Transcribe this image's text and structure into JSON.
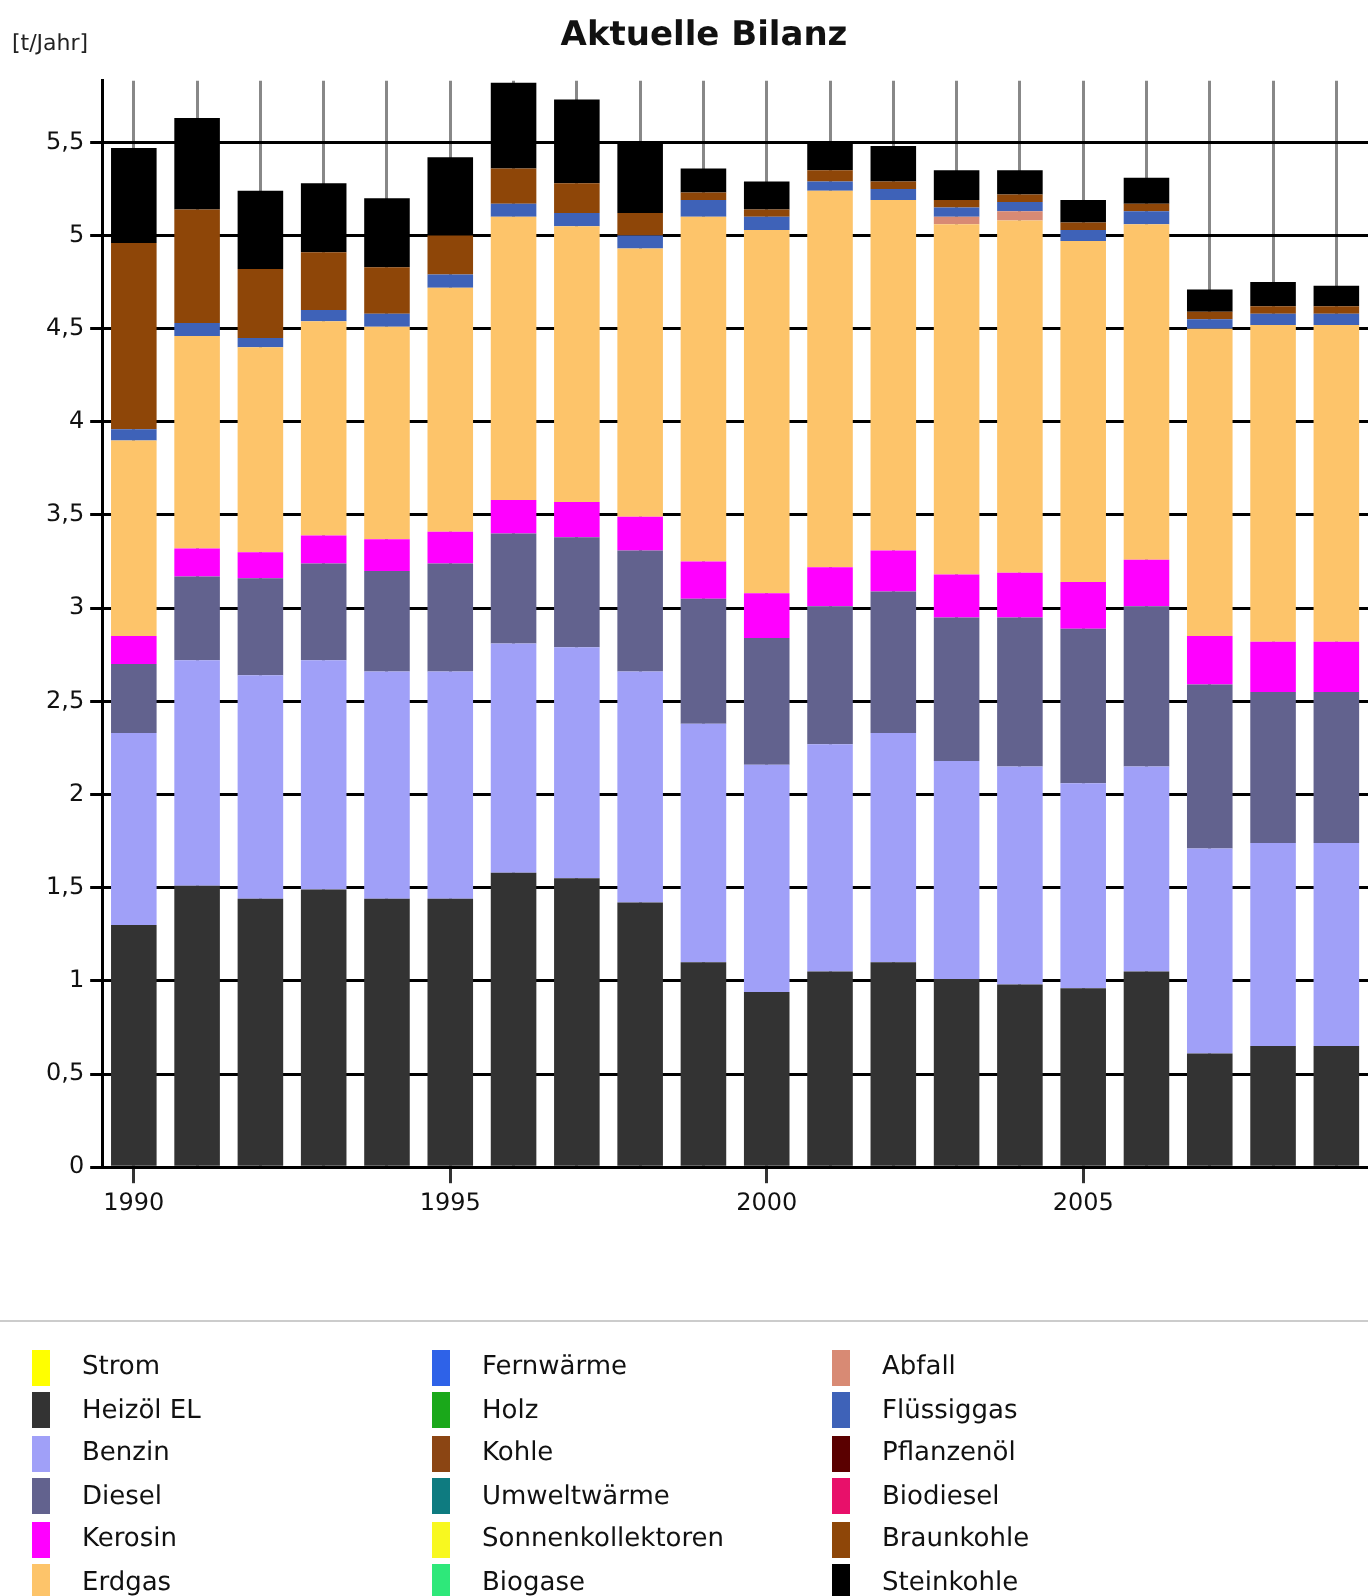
{
  "chart_data": {
    "type": "bar",
    "title": "Aktuelle Bilanz",
    "ylabel": "[t/Jahr]",
    "stacked": true,
    "grid": true,
    "legend": "bottom",
    "categories": [
      "1990",
      null,
      null,
      null,
      null,
      "1995",
      null,
      null,
      null,
      null,
      "2000",
      null,
      null,
      null,
      null,
      "2005",
      null,
      null,
      null,
      null
    ],
    "ylim": [
      0,
      5.83
    ],
    "yticks": [
      0,
      {
        "value": 0.5,
        "label": "0,5"
      },
      1,
      {
        "value": 1.5,
        "label": "1,5"
      },
      2,
      {
        "value": 2.5,
        "label": "2,5"
      },
      3,
      {
        "value": 3.5,
        "label": "3,5"
      },
      4,
      {
        "value": 4.5,
        "label": "4,5"
      },
      5,
      {
        "value": 5.5,
        "label": "5,5"
      }
    ],
    "series": [
      {
        "name": "Strom",
        "color": "#ffff00",
        "values": [
          0,
          0,
          0,
          0,
          0,
          0,
          0,
          0,
          0,
          0,
          0,
          0,
          0,
          0,
          0,
          0,
          0,
          0,
          0,
          0
        ]
      },
      {
        "name": "Heizöl EL",
        "color": "#333333",
        "values": [
          1.3,
          1.51,
          1.44,
          1.49,
          1.44,
          1.44,
          1.58,
          1.55,
          1.42,
          1.1,
          0.94,
          1.05,
          1.1,
          1.01,
          0.98,
          0.96,
          1.05,
          0.61,
          0.65,
          0.65
        ]
      },
      {
        "name": "Benzin",
        "color": "#a0a0f8",
        "values": [
          1.03,
          1.21,
          1.2,
          1.23,
          1.22,
          1.22,
          1.23,
          1.24,
          1.24,
          1.28,
          1.22,
          1.22,
          1.23,
          1.17,
          1.17,
          1.1,
          1.1,
          1.1,
          1.09,
          1.09
        ]
      },
      {
        "name": "Diesel",
        "color": "#62628e",
        "values": [
          0.37,
          0.45,
          0.52,
          0.52,
          0.54,
          0.58,
          0.59,
          0.59,
          0.65,
          0.67,
          0.68,
          0.74,
          0.76,
          0.77,
          0.8,
          0.83,
          0.86,
          0.88,
          0.81,
          0.81
        ]
      },
      {
        "name": "Kerosin",
        "color": "#ff00ff",
        "values": [
          0.15,
          0.15,
          0.14,
          0.15,
          0.17,
          0.17,
          0.18,
          0.19,
          0.18,
          0.2,
          0.24,
          0.21,
          0.22,
          0.23,
          0.24,
          0.25,
          0.25,
          0.26,
          0.27,
          0.27
        ]
      },
      {
        "name": "Erdgas",
        "color": "#fdc46a",
        "values": [
          1.05,
          1.14,
          1.1,
          1.15,
          1.14,
          1.31,
          1.52,
          1.48,
          1.44,
          1.85,
          1.95,
          2.02,
          1.88,
          1.88,
          1.89,
          1.83,
          1.8,
          1.65,
          1.7,
          1.7
        ]
      },
      {
        "name": "Fernwärme",
        "color": "#2e62e8",
        "values": [
          0,
          0,
          0,
          0,
          0,
          0,
          0,
          0,
          0,
          0,
          0,
          0,
          0,
          0,
          0,
          0,
          0,
          0,
          0,
          0
        ]
      },
      {
        "name": "Holz",
        "color": "#1aa81a",
        "values": [
          0,
          0,
          0,
          0,
          0,
          0,
          0,
          0,
          0,
          0,
          0,
          0,
          0,
          0,
          0,
          0,
          0,
          0,
          0,
          0
        ]
      },
      {
        "name": "Kohle",
        "color": "#8b4513",
        "values": [
          0,
          0,
          0,
          0,
          0,
          0,
          0,
          0,
          0,
          0,
          0,
          0,
          0,
          0,
          0,
          0,
          0,
          0,
          0,
          0
        ]
      },
      {
        "name": "Umweltwärme",
        "color": "#0e7b80",
        "values": [
          0,
          0,
          0,
          0,
          0,
          0,
          0,
          0,
          0,
          0,
          0,
          0,
          0,
          0,
          0,
          0,
          0,
          0,
          0,
          0
        ]
      },
      {
        "name": "Sonnenkollektoren",
        "color": "#f8f820",
        "values": [
          0,
          0,
          0,
          0,
          0,
          0,
          0,
          0,
          0,
          0,
          0,
          0,
          0,
          0,
          0,
          0,
          0,
          0,
          0,
          0
        ]
      },
      {
        "name": "Biogase",
        "color": "#2ee87a",
        "values": [
          0,
          0,
          0,
          0,
          0,
          0,
          0,
          0,
          0,
          0,
          0,
          0,
          0,
          0,
          0,
          0,
          0,
          0,
          0,
          0
        ]
      },
      {
        "name": "Abfall",
        "color": "#d88a74",
        "values": [
          0,
          0,
          0,
          0,
          0,
          0,
          0,
          0,
          0,
          0,
          0,
          0,
          0,
          0.04,
          0.05,
          0,
          0,
          0,
          0,
          0
        ]
      },
      {
        "name": "Flüssiggas",
        "color": "#3e62b8",
        "values": [
          0.06,
          0.07,
          0.05,
          0.06,
          0.07,
          0.07,
          0.07,
          0.07,
          0.07,
          0.09,
          0.07,
          0.05,
          0.06,
          0.05,
          0.05,
          0.06,
          0.07,
          0.05,
          0.06,
          0.06
        ]
      },
      {
        "name": "Pflanzenöl",
        "color": "#5a0000",
        "values": [
          0,
          0,
          0,
          0,
          0,
          0,
          0,
          0,
          0,
          0,
          0,
          0,
          0,
          0,
          0,
          0,
          0,
          0,
          0,
          0
        ]
      },
      {
        "name": "Biodiesel",
        "color": "#e8106a",
        "values": [
          0,
          0,
          0,
          0,
          0,
          0,
          0,
          0,
          0,
          0,
          0,
          0,
          0,
          0,
          0,
          0,
          0,
          0,
          0,
          0
        ]
      },
      {
        "name": "Braunkohle",
        "color": "#8e4608",
        "values": [
          1.0,
          0.61,
          0.37,
          0.31,
          0.25,
          0.21,
          0.19,
          0.16,
          0.12,
          0.04,
          0.04,
          0.06,
          0.04,
          0.04,
          0.04,
          0.04,
          0.04,
          0.04,
          0.04,
          0.04
        ]
      },
      {
        "name": "Steinkohle",
        "color": "#000000",
        "values": [
          0.51,
          0.49,
          0.42,
          0.37,
          0.37,
          0.42,
          0.46,
          0.45,
          0.38,
          0.13,
          0.15,
          0.15,
          0.19,
          0.16,
          0.13,
          0.12,
          0.14,
          0.12,
          0.13,
          0.11
        ]
      }
    ]
  }
}
